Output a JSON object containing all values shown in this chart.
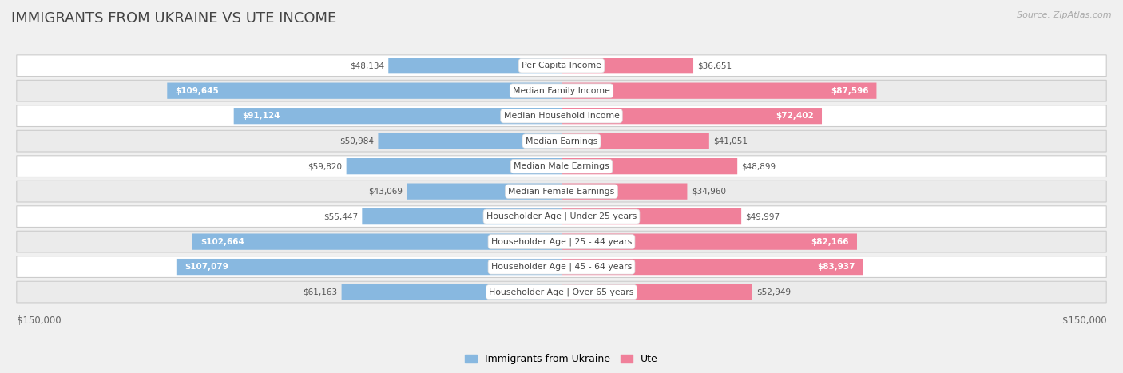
{
  "title": "IMMIGRANTS FROM UKRAINE VS UTE INCOME",
  "source": "Source: ZipAtlas.com",
  "categories": [
    "Per Capita Income",
    "Median Family Income",
    "Median Household Income",
    "Median Earnings",
    "Median Male Earnings",
    "Median Female Earnings",
    "Householder Age | Under 25 years",
    "Householder Age | 25 - 44 years",
    "Householder Age | 45 - 64 years",
    "Householder Age | Over 65 years"
  ],
  "ukraine_values": [
    48134,
    109645,
    91124,
    50984,
    59820,
    43069,
    55447,
    102664,
    107079,
    61163
  ],
  "ute_values": [
    36651,
    87596,
    72402,
    41051,
    48899,
    34960,
    49997,
    82166,
    83937,
    52949
  ],
  "ukraine_color": "#88b8e0",
  "ute_color": "#f0809a",
  "ukraine_color_light": "#afd0ea",
  "ute_color_light": "#f8b0c0",
  "max_value": 150000,
  "bg_color": "#f0f0f0",
  "row_bg": "#e8e8e8",
  "row_white": "#ffffff",
  "label_inside_threshold": 65000,
  "ukraine_label": "Immigrants from Ukraine",
  "ute_label": "Ute",
  "title_color": "#444444",
  "source_color": "#aaaaaa",
  "axis_label_color": "#666666"
}
